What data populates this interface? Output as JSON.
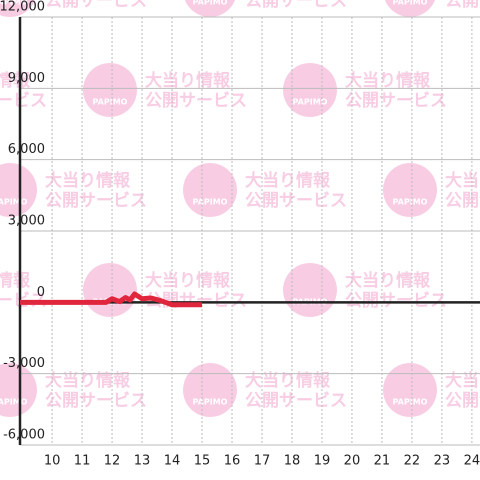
{
  "chart_data": {
    "type": "line",
    "watermark": {
      "logo": "PAPIMO",
      "title": "大当り情報",
      "subtitle": "公開サービス"
    },
    "x": [
      8.93,
      11.8,
      12.0,
      12.25,
      12.45,
      12.6,
      12.75,
      13.0,
      13.3,
      13.6,
      14.0,
      15.0
    ],
    "series": [
      {
        "color": "#e0263c",
        "values": [
          0,
          0,
          150,
          30,
          200,
          100,
          350,
          150,
          180,
          80,
          -100,
          -100
        ]
      }
    ],
    "xlim": [
      8.93,
      24.27
    ],
    "xticks": [
      10,
      11,
      12,
      13,
      14,
      15,
      16,
      17,
      18,
      19,
      20,
      21,
      22,
      23,
      24
    ],
    "ylim": [
      -6000,
      12000
    ],
    "yticks": [
      {
        "value": -6000,
        "label": "-6,000"
      },
      {
        "value": -3000,
        "label": "-3,000"
      },
      0,
      {
        "value": 3000,
        "label": "3,000"
      },
      {
        "value": 6000,
        "label": "6,000"
      },
      {
        "value": 9000,
        "label": "9,000"
      },
      {
        "value": 12000,
        "label": "12,000"
      }
    ],
    "grid": true
  }
}
